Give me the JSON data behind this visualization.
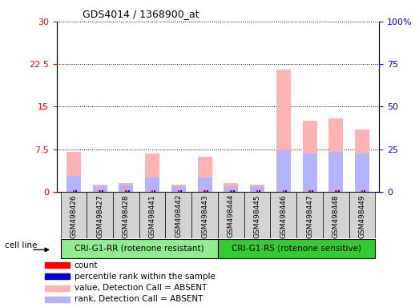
{
  "title": "GDS4014 / 1368900_at",
  "samples": [
    "GSM498426",
    "GSM498427",
    "GSM498428",
    "GSM498441",
    "GSM498442",
    "GSM498443",
    "GSM498444",
    "GSM498445",
    "GSM498446",
    "GSM498447",
    "GSM498448",
    "GSM498449"
  ],
  "group1_label": "CRI-G1-RR (rotenone resistant)",
  "group2_label": "CRI-G1-RS (rotenone sensitive)",
  "cell_line_label": "cell line",
  "absent_value_values": [
    7.0,
    1.2,
    1.5,
    6.8,
    1.2,
    6.2,
    1.5,
    1.2,
    21.5,
    12.5,
    13.0,
    11.0
  ],
  "absent_rank_values": [
    2.8,
    1.0,
    1.2,
    2.5,
    1.0,
    2.5,
    1.0,
    1.0,
    7.5,
    6.8,
    7.0,
    6.8
  ],
  "ylim_left": [
    0,
    30
  ],
  "ylim_right": [
    0,
    100
  ],
  "yticks_left": [
    0,
    7.5,
    15,
    22.5,
    30
  ],
  "yticks_right": [
    0,
    25,
    50,
    75,
    100
  ],
  "ytick_labels_left": [
    "0",
    "7.5",
    "15",
    "22.5",
    "30"
  ],
  "ytick_labels_right": [
    "0",
    "25",
    "50",
    "75",
    "100%"
  ],
  "absent_value_color": "#ffb3b3",
  "absent_rank_color": "#b3b3ff",
  "count_color": "#ff0000",
  "rank_color": "#0000ff",
  "bg_color": "#d3d3d3",
  "group1_color": "#90ee90",
  "group2_color": "#33cc33",
  "legend_items": [
    {
      "label": "count",
      "color": "#ff0000"
    },
    {
      "label": "percentile rank within the sample",
      "color": "#0000cc"
    },
    {
      "label": "value, Detection Call = ABSENT",
      "color": "#ffb3b3"
    },
    {
      "label": "rank, Detection Call = ABSENT",
      "color": "#b3b3ff"
    }
  ]
}
